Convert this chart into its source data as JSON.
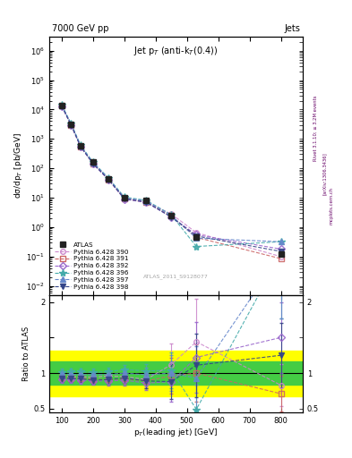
{
  "title_top": "7000 GeV pp",
  "title_right": "Jets",
  "plot_title": "Jet p$_{T}$ (anti-k$_{T}$(0.4))",
  "xlabel": "p$_{T}$(leading jet) [GeV]",
  "ylabel_main": "dσ/dp$_{T}$ [pb/GeV]",
  "ylabel_ratio": "Ratio to ATLAS",
  "watermark": "ATLAS_2011_S9128077",
  "right_label1": "Rivet 3.1.10; ≥ 3.2M events",
  "right_label2": "[arXiv:1306.3436]",
  "right_label3": "mcplots.cern.ch",
  "atlas_x": [
    100,
    130,
    160,
    200,
    250,
    300,
    370,
    450,
    530,
    800
  ],
  "atlas_y": [
    14000,
    3200,
    600,
    160,
    45,
    10,
    8,
    2.5,
    0.45,
    0.12
  ],
  "atlas_yerr_lo": [
    800,
    180,
    30,
    8,
    2.5,
    0.6,
    0.4,
    0.15,
    0.04,
    0.015
  ],
  "atlas_yerr_hi": [
    800,
    180,
    30,
    8,
    2.5,
    0.6,
    0.4,
    0.15,
    0.04,
    0.015
  ],
  "configs": [
    {
      "label": "Pythia 6.428 390",
      "color": "#cc88cc",
      "marker": "o",
      "x": [
        100,
        130,
        160,
        200,
        250,
        300,
        370,
        450,
        530,
        800
      ],
      "y": [
        13500,
        3050,
        570,
        150,
        43,
        9.5,
        7.3,
        2.8,
        0.65,
        0.1
      ],
      "ratio": [
        0.96,
        0.95,
        0.95,
        0.94,
        0.96,
        0.95,
        0.91,
        1.12,
        1.44,
        0.83
      ],
      "ratio_err": [
        0.05,
        0.05,
        0.05,
        0.05,
        0.06,
        0.07,
        0.1,
        0.3,
        0.6,
        0.3
      ]
    },
    {
      "label": "Pythia 6.428 391",
      "color": "#cc6666",
      "marker": "s",
      "x": [
        100,
        130,
        160,
        200,
        250,
        300,
        370,
        450,
        530,
        800
      ],
      "y": [
        13200,
        2980,
        555,
        146,
        41,
        9.2,
        7.1,
        2.4,
        0.45,
        0.085
      ],
      "ratio": [
        0.94,
        0.93,
        0.93,
        0.91,
        0.91,
        0.92,
        0.89,
        0.96,
        1.0,
        0.71
      ],
      "ratio_err": [
        0.05,
        0.05,
        0.05,
        0.05,
        0.06,
        0.07,
        0.1,
        0.25,
        0.4,
        0.25
      ]
    },
    {
      "label": "Pythia 6.428 392",
      "color": "#9966cc",
      "marker": "D",
      "x": [
        100,
        130,
        160,
        200,
        250,
        300,
        370,
        450,
        530,
        800
      ],
      "y": [
        12800,
        2900,
        540,
        142,
        40,
        9.0,
        6.9,
        2.2,
        0.55,
        0.18
      ],
      "ratio": [
        0.91,
        0.91,
        0.9,
        0.89,
        0.89,
        0.9,
        0.86,
        0.88,
        1.22,
        1.5
      ],
      "ratio_err": [
        0.05,
        0.05,
        0.05,
        0.05,
        0.06,
        0.07,
        0.1,
        0.28,
        0.5,
        0.5
      ]
    },
    {
      "label": "Pythia 6.428 396",
      "color": "#44aaaa",
      "marker": "*",
      "x": [
        100,
        130,
        160,
        200,
        250,
        300,
        370,
        450,
        530,
        800
      ],
      "y": [
        14200,
        3250,
        610,
        162,
        46,
        10.5,
        8.2,
        2.6,
        0.22,
        0.32
      ],
      "ratio": [
        1.01,
        1.02,
        1.02,
        1.01,
        1.02,
        1.05,
        1.03,
        1.04,
        0.49,
        2.67
      ],
      "ratio_err": [
        0.05,
        0.05,
        0.05,
        0.05,
        0.06,
        0.07,
        0.1,
        0.25,
        0.35,
        0.9
      ]
    },
    {
      "label": "Pythia 6.428 397",
      "color": "#6688cc",
      "marker": "^",
      "x": [
        100,
        130,
        160,
        200,
        250,
        300,
        370,
        450,
        530,
        800
      ],
      "y": [
        13800,
        3150,
        590,
        156,
        44,
        10.0,
        7.8,
        2.5,
        0.42,
        0.32
      ],
      "ratio": [
        0.99,
        0.98,
        0.98,
        0.975,
        0.98,
        1.0,
        0.975,
        1.0,
        0.93,
        2.67
      ],
      "ratio_err": [
        0.05,
        0.05,
        0.05,
        0.05,
        0.06,
        0.07,
        0.1,
        0.25,
        0.45,
        0.9
      ]
    },
    {
      "label": "Pythia 6.428 398",
      "color": "#334488",
      "marker": "v",
      "x": [
        100,
        130,
        160,
        200,
        250,
        300,
        370,
        450,
        530,
        800
      ],
      "y": [
        13000,
        2950,
        550,
        144,
        41,
        9.3,
        7.1,
        2.2,
        0.5,
        0.15
      ],
      "ratio": [
        0.93,
        0.92,
        0.92,
        0.9,
        0.91,
        0.93,
        0.89,
        0.88,
        1.11,
        1.25
      ],
      "ratio_err": [
        0.05,
        0.05,
        0.05,
        0.05,
        0.06,
        0.07,
        0.1,
        0.25,
        0.45,
        0.45
      ]
    }
  ],
  "band_yellow_lo": 0.68,
  "band_yellow_hi": 1.32,
  "band_green_lo": 0.84,
  "band_green_hi": 1.16,
  "xlim": [
    60,
    870
  ],
  "ylim_main": [
    0.005,
    3000000
  ],
  "ylim_ratio": [
    0.45,
    2.1
  ]
}
